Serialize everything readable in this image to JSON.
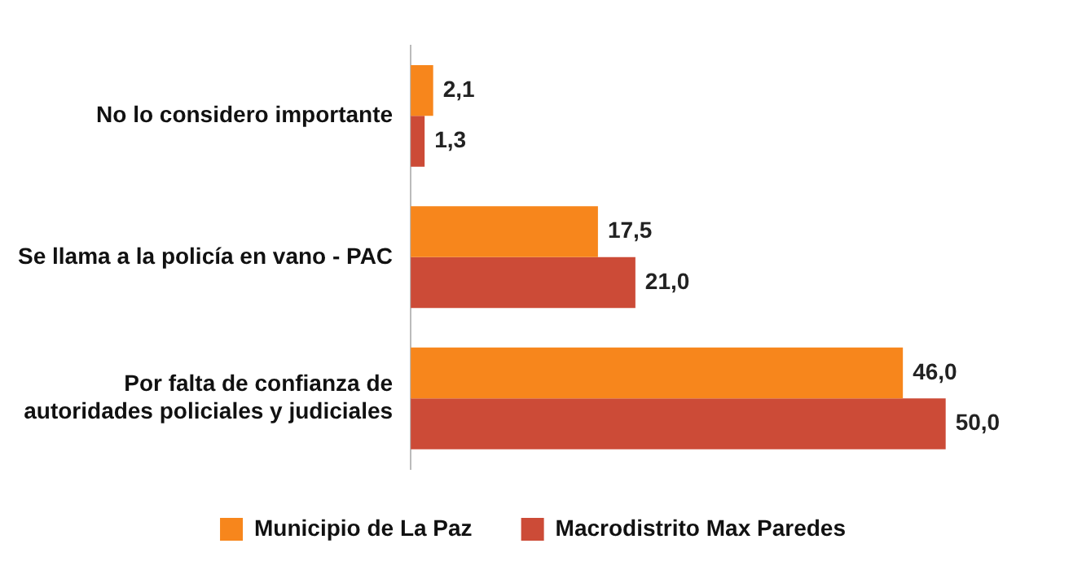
{
  "chart_data": {
    "type": "bar",
    "orientation": "horizontal",
    "categories": [
      "No lo considero importante",
      "Se llama a la policía en vano - PAC",
      "Por falta de confianza de autoridades policiales y judiciales"
    ],
    "series": [
      {
        "name": "Municipio de La Paz",
        "color": "#f7861c",
        "values": [
          2.1,
          17.5,
          46.0
        ],
        "value_labels": [
          "2,1",
          "17,5",
          "46,0"
        ]
      },
      {
        "name": "Macrodistrito Max Paredes",
        "color": "#cc4b37",
        "values": [
          1.3,
          21.0,
          50.0
        ],
        "value_labels": [
          "1,3",
          "21,0",
          "50,0"
        ]
      }
    ],
    "legend": "bottom"
  }
}
